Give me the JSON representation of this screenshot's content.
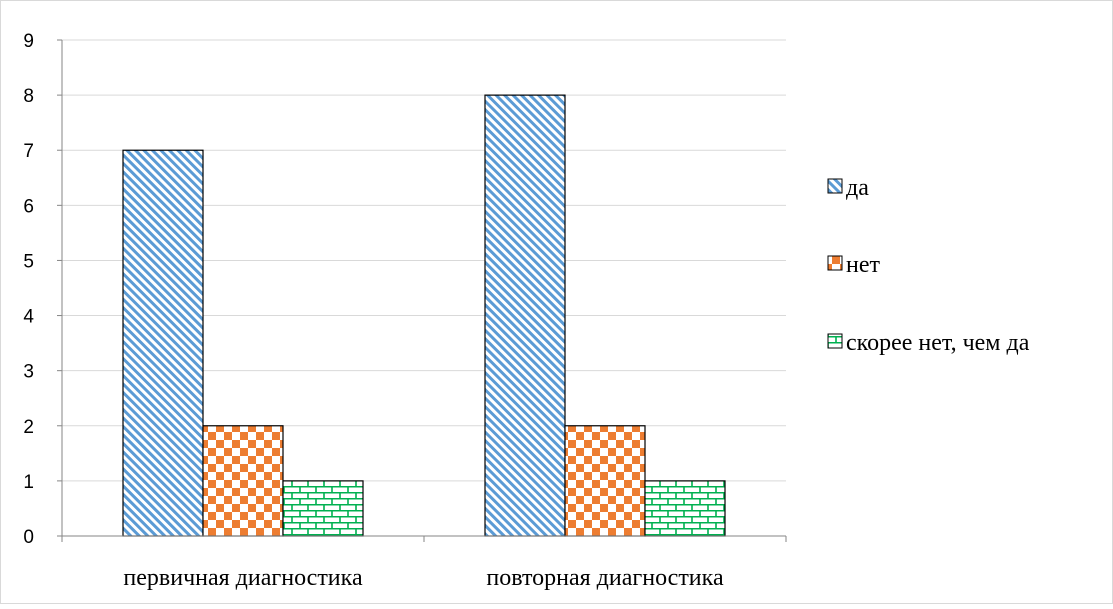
{
  "chart_data": {
    "type": "bar",
    "categories": [
      "первичная диагностика",
      "повторная диагностика"
    ],
    "series": [
      {
        "name": "да",
        "values": [
          7,
          8
        ],
        "color": "#5b9bd5",
        "pattern": "diagonal-stripes"
      },
      {
        "name": "нет",
        "values": [
          2,
          2
        ],
        "color": "#ed7d31",
        "pattern": "checkerboard"
      },
      {
        "name": "скорее нет, чем да",
        "values": [
          1,
          1
        ],
        "color": "#00b050",
        "pattern": "brick"
      }
    ],
    "yticks": [
      "0",
      "1",
      "2",
      "3",
      "4",
      "5",
      "6",
      "7",
      "8",
      "9"
    ],
    "ylim": [
      0,
      9
    ],
    "grid": true,
    "legend_position": "right"
  }
}
